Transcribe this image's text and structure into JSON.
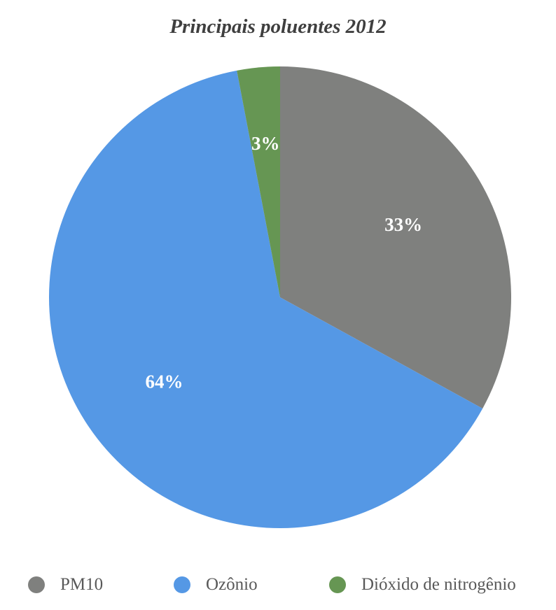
{
  "chart_data": {
    "type": "pie",
    "title": "Principais poluentes 2012",
    "categories": [
      "PM10",
      "Ozônio",
      "Dióxido de nitrogênio"
    ],
    "values": [
      33,
      64,
      3
    ],
    "labels": [
      "33%",
      "64%",
      "3%"
    ],
    "colors": [
      "#7f807e",
      "#5598e5",
      "#669653"
    ],
    "legend_position": "bottom",
    "start_angle": "top",
    "direction": "clockwise"
  }
}
